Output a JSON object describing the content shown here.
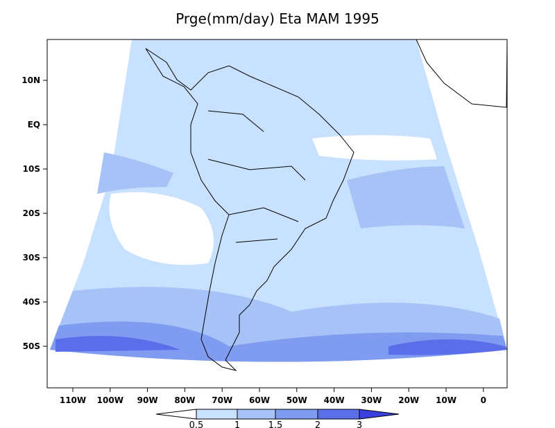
{
  "title": "Prge(mm/day) Eta MAM 1995",
  "latitude_labels": [
    "10N",
    "EQ",
    "10S",
    "20S",
    "30S",
    "40S",
    "50S"
  ],
  "longitude_labels": [
    "110W",
    "100W",
    "90W",
    "80W",
    "70W",
    "60W",
    "50W",
    "40W",
    "30W",
    "20W",
    "10W",
    "0"
  ],
  "colorbar": {
    "levels": [
      0.5,
      1,
      1.5,
      2,
      3
    ],
    "colors": [
      "#ffffff",
      "#c8e1ff",
      "#a6c2f7",
      "#7f9cf0",
      "#5a6eea",
      "#3a3fe0"
    ]
  }
}
